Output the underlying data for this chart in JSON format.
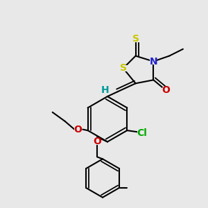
{
  "bg_color": "#e8e8e8",
  "bond_color": "#000000",
  "bond_width": 1.5,
  "figsize": [
    3.0,
    3.0
  ],
  "dpi": 100,
  "colors": {
    "S": "#c8c800",
    "N": "#2020cc",
    "O": "#cc0000",
    "H": "#009999",
    "Cl": "#00aa00",
    "C": "#000000"
  }
}
